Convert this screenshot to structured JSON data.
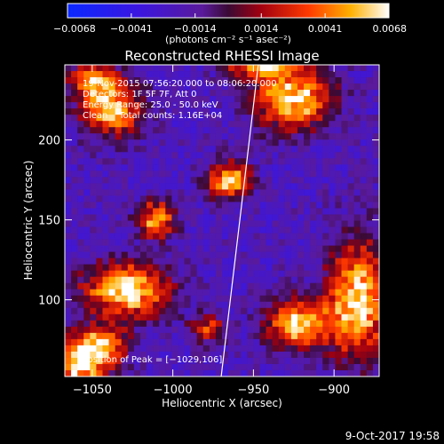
{
  "chart_data": {
    "type": "heatmap",
    "title": "Reconstructed RHESSI Image",
    "xlabel": "Heliocentric X (arcsec)",
    "ylabel": "Heliocentric Y (arcsec)",
    "xlim": [
      -1067,
      -872
    ],
    "ylim": [
      52,
      247
    ],
    "x_ticks": [
      -1050,
      -1000,
      -950,
      -900
    ],
    "y_ticks": [
      100,
      150,
      200
    ],
    "x_tick_labels": [
      "−1050",
      "−1000",
      "−950",
      "−900"
    ],
    "y_tick_labels": [
      "100",
      "150",
      "200"
    ],
    "colorbar": {
      "range": [
        -0.0068,
        0.0068
      ],
      "ticks": [
        -0.0068,
        -0.0041,
        -0.0014,
        0.0014,
        0.0041,
        0.0068
      ],
      "tick_labels": [
        "−0.0068",
        "−0.0041",
        "−0.0014",
        "0.0014",
        "0.0041",
        "0.0068"
      ],
      "units_label": "(photons cm⁻² s⁻¹ asec⁻²)"
    },
    "annotations": [
      "19-Nov-2015 07:56:20.000 to 08:06:20.000",
      "Detectors: 1F 5F 7F, Att 0",
      "Energy Range: 25.0 - 50.0 keV",
      "Clean    Total counts: 1.16E+04",
      "Position of Peak = [−1029,106]"
    ],
    "limb_line": {
      "x": [
        -970,
        -947
      ],
      "y": [
        52,
        247
      ]
    },
    "sources": [
      {
        "x": -1038,
        "y": 220,
        "intensity": 0.006,
        "sx": 13,
        "sy": 12
      },
      {
        "x": -1050,
        "y": 238,
        "intensity": 0.004,
        "sx": 10,
        "sy": 7
      },
      {
        "x": -926,
        "y": 226,
        "intensity": 0.0066,
        "sx": 17,
        "sy": 13
      },
      {
        "x": -945,
        "y": 246,
        "intensity": 0.005,
        "sx": 14,
        "sy": 5
      },
      {
        "x": -965,
        "y": 175,
        "intensity": 0.0062,
        "sx": 9,
        "sy": 8
      },
      {
        "x": -1010,
        "y": 150,
        "intensity": 0.0055,
        "sx": 8,
        "sy": 8
      },
      {
        "x": -1029,
        "y": 106,
        "intensity": 0.0068,
        "sx": 18,
        "sy": 12
      },
      {
        "x": -1058,
        "y": 60,
        "intensity": 0.0064,
        "sx": 12,
        "sy": 12
      },
      {
        "x": -1042,
        "y": 72,
        "intensity": 0.004,
        "sx": 10,
        "sy": 8
      },
      {
        "x": -885,
        "y": 100,
        "intensity": 0.0066,
        "sx": 13,
        "sy": 25
      },
      {
        "x": -922,
        "y": 85,
        "intensity": 0.006,
        "sx": 14,
        "sy": 11
      },
      {
        "x": -978,
        "y": 82,
        "intensity": 0.003,
        "sx": 8,
        "sy": 6
      }
    ],
    "background_level": -0.0022,
    "grid": false
  },
  "footer": {
    "date": "9-Oct-2017 19:58"
  }
}
